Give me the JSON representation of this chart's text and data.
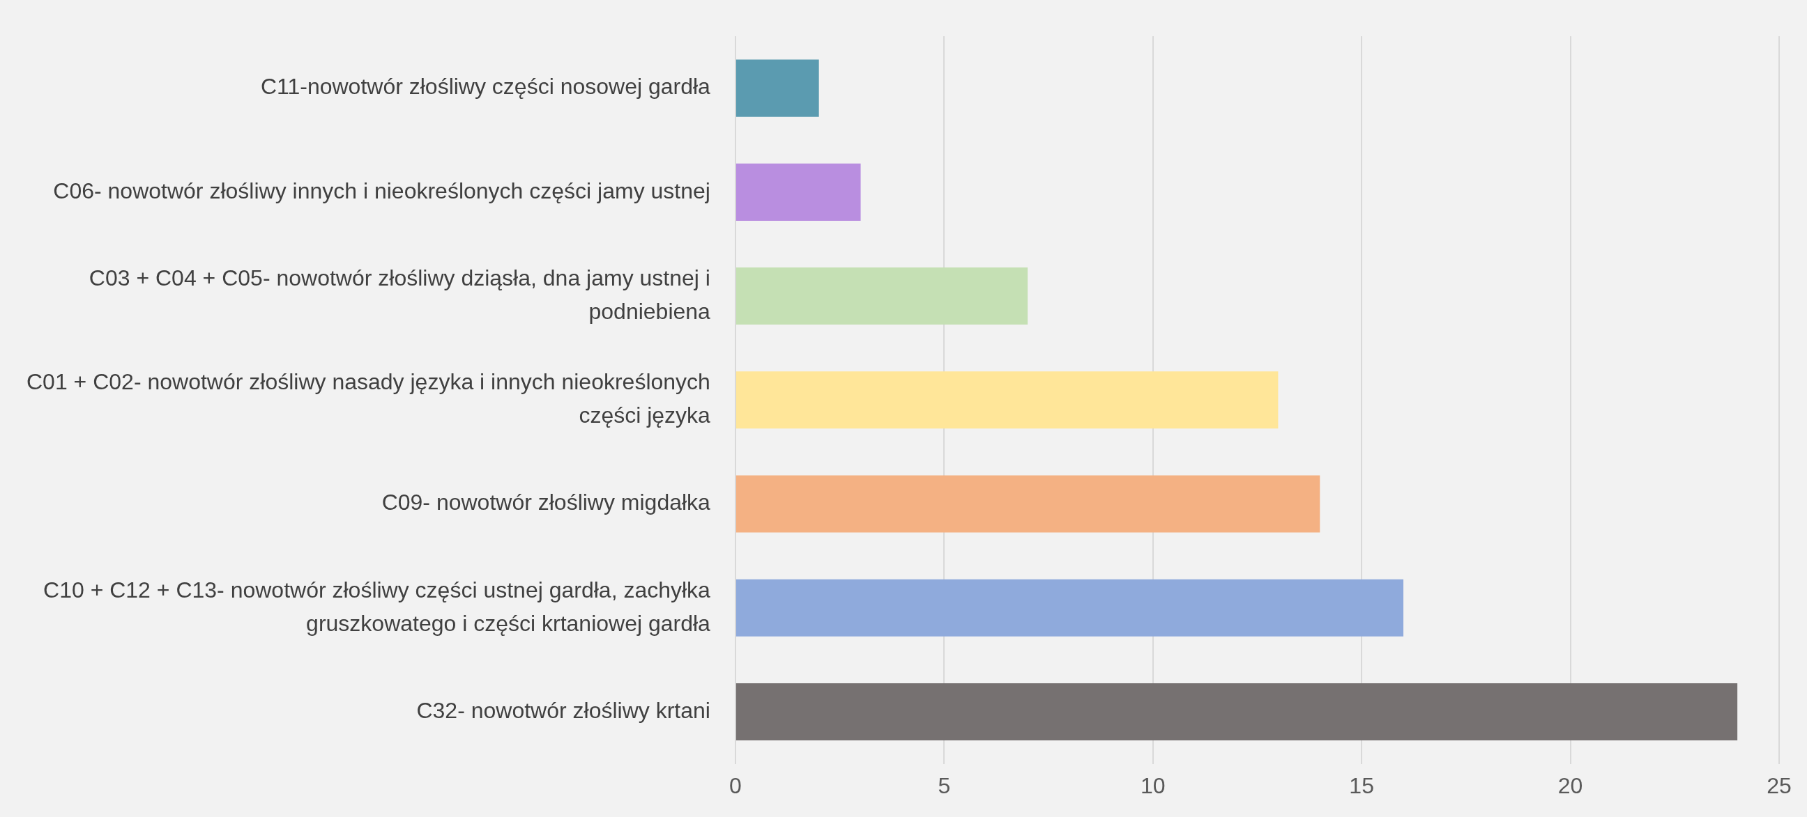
{
  "chart_data": {
    "type": "bar",
    "orientation": "horizontal",
    "categories": [
      "C11-nowotwór złośliwy części nosowej gardła",
      "C06- nowotwór złośliwy innych i nieokreślonych części jamy ustnej",
      "C03 + C04 + C05- nowotwór złośliwy dziąsła, dna jamy ustnej i podniebiena",
      "C01 + C02- nowotwór złośliwy nasady języka i innych nieokreślonych części języka",
      "C09- nowotwór złośliwy migdałka",
      "C10 + C12 + C13- nowotwór złośliwy części ustnej gardła, zachyłka gruszkowatego i części krtaniowej gardła",
      "C32- nowotwór złośliwy krtani"
    ],
    "values": [
      2,
      3,
      7,
      13,
      14,
      16,
      24
    ],
    "colors": [
      "#5b9bb0",
      "#b98ee0",
      "#c5e0b4",
      "#ffe699",
      "#f4b183",
      "#8faadc",
      "#767171"
    ],
    "xlim": [
      0,
      25
    ],
    "xticks": [
      0,
      5,
      10,
      15,
      20,
      25
    ],
    "grid": "x",
    "legend": false
  }
}
